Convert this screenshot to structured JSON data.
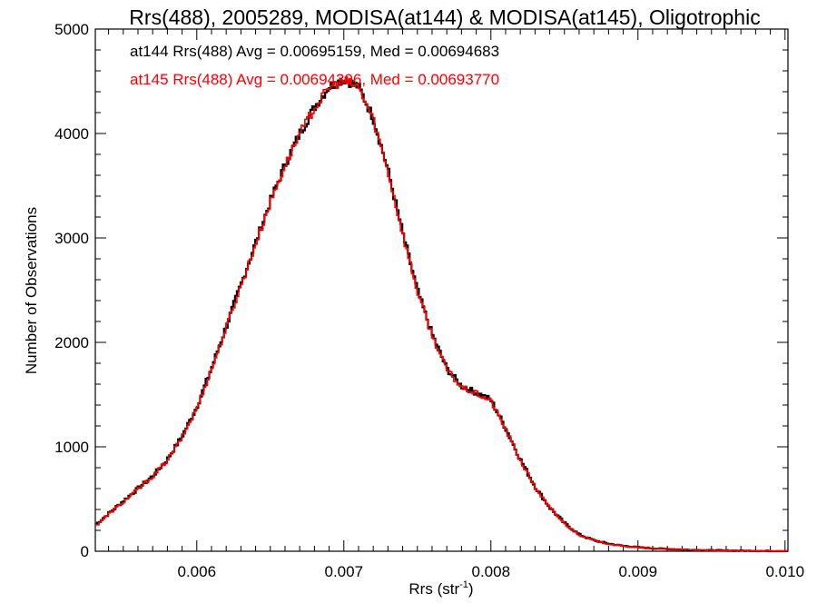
{
  "chart_data": {
    "type": "line",
    "title": "Rrs(488), 2005289, MODISA(at144) & MODISA(at145), Oligotrophic",
    "xlabel_main": "Rrs (str",
    "xlabel_sup": "-1",
    "xlabel_close": ")",
    "ylabel": "Number of Observations",
    "xlim": [
      0.00531,
      0.01002
    ],
    "ylim": [
      0,
      5000
    ],
    "xticks": [
      0.006,
      0.007,
      0.008,
      0.009,
      0.01
    ],
    "xtick_labels": [
      "0.006",
      "0.007",
      "0.008",
      "0.009",
      "0.010"
    ],
    "yticks": [
      0,
      1000,
      2000,
      3000,
      4000,
      5000
    ],
    "ytick_labels": [
      "0",
      "1000",
      "2000",
      "3000",
      "4000",
      "5000"
    ],
    "grid": false,
    "step_plot": true,
    "annotations": [
      {
        "text": "at144 Rrs(488) Avg = 0.00695159, Med = 0.00694683",
        "color": "#000000"
      },
      {
        "text": "at145 Rrs(488) Avg = 0.00694396, Med = 0.00693770",
        "color": "#ff0000"
      }
    ],
    "x": [
      0.00531,
      0.0054,
      0.0055,
      0.0056,
      0.0057,
      0.0058,
      0.0059,
      0.006,
      0.0061,
      0.0062,
      0.0063,
      0.0064,
      0.0065,
      0.0066,
      0.0067,
      0.0068,
      0.0069,
      0.007,
      0.0071,
      0.0072,
      0.0073,
      0.0074,
      0.0075,
      0.0076,
      0.0077,
      0.0078,
      0.0079,
      0.008,
      0.0081,
      0.0082,
      0.0083,
      0.0084,
      0.0085,
      0.0086,
      0.0087,
      0.0088,
      0.0089,
      0.009,
      0.0091,
      0.0092,
      0.0093,
      0.0094,
      0.0095,
      0.0096,
      0.0097,
      0.0098,
      0.0099,
      0.01002
    ],
    "series": [
      {
        "name": "at144",
        "color": "#000000",
        "values": [
          250,
          360,
          480,
          600,
          720,
          880,
          1100,
          1380,
          1750,
          2150,
          2550,
          2950,
          3350,
          3700,
          4000,
          4250,
          4450,
          4520,
          4450,
          4150,
          3650,
          3050,
          2500,
          2080,
          1750,
          1580,
          1520,
          1450,
          1180,
          880,
          620,
          420,
          270,
          160,
          105,
          72,
          52,
          38,
          28,
          22,
          16,
          12,
          9,
          7,
          5,
          4,
          3,
          2
        ]
      },
      {
        "name": "at145",
        "color": "#ff0000",
        "values": [
          240,
          355,
          470,
          595,
          715,
          870,
          1090,
          1370,
          1740,
          2140,
          2540,
          2940,
          3340,
          3690,
          3995,
          4245,
          4440,
          4510,
          4440,
          4140,
          3640,
          3040,
          2490,
          2070,
          1740,
          1570,
          1510,
          1440,
          1170,
          870,
          615,
          415,
          265,
          158,
          103,
          70,
          50,
          37,
          27,
          21,
          15,
          11,
          8,
          6,
          5,
          4,
          3,
          2
        ]
      }
    ]
  }
}
